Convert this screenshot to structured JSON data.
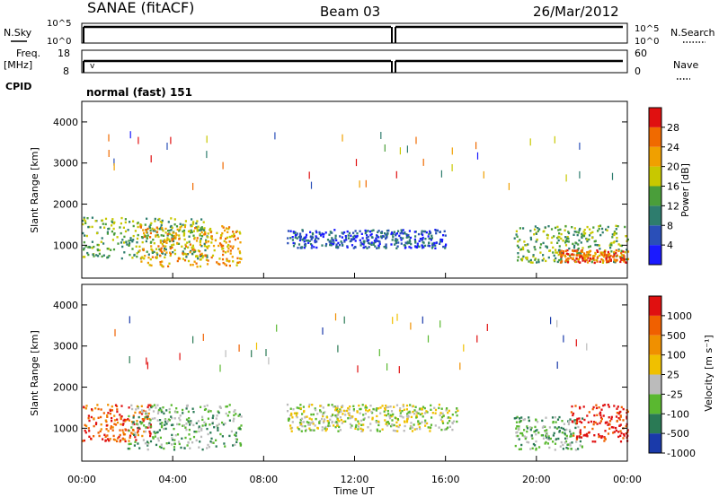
{
  "header": {
    "station": "SANAE (fitACF)",
    "beam": "Beam 03",
    "date": "26/Mar/2012"
  },
  "top_panels": {
    "nsky_label": "N.Sky",
    "nsky_ticks": [
      "10^5",
      "10^0"
    ],
    "nsearch_label": "N.Search",
    "nsearch_ticks": [
      "10^5",
      "10^0"
    ],
    "freq_label": "Freq.",
    "freq_unit": "[MHz]",
    "freq_ticks": [
      "18",
      "8"
    ],
    "nave_label": "Nave",
    "nave_ticks": [
      "60",
      "0"
    ],
    "cpid_label": "CPID",
    "cpid_value": "normal (fast) 151"
  },
  "colorbars": {
    "power": {
      "label": "Power [dB]",
      "ticks": [
        "28",
        "24",
        "20",
        "16",
        "12",
        "8",
        "4"
      ],
      "colors": [
        "#1a1aff",
        "#2a4fb8",
        "#2e7d6e",
        "#4a9e3a",
        "#c8c800",
        "#f0a000",
        "#f06a00",
        "#e01010"
      ]
    },
    "velocity": {
      "label": "Velocity [m s⁻¹]",
      "ticks": [
        "1000",
        "500",
        "100",
        "25",
        "-25",
        "-100",
        "-500",
        "-1000"
      ],
      "colors": [
        "#1a3aaa",
        "#2a7a55",
        "#5ab830",
        "#bbbbbb",
        "#f0c000",
        "#f09000",
        "#f06000",
        "#e01010"
      ]
    }
  },
  "chart_data": [
    {
      "type": "heatmap",
      "name": "power",
      "ylabel": "Slant Range [km]",
      "ylim": [
        200,
        4500
      ],
      "yticks": [
        "4000",
        "3000",
        "2000",
        "1000"
      ],
      "xlim": [
        0,
        24
      ],
      "regions": [
        {
          "t0": 0.0,
          "t1": 5.5,
          "r0": 700,
          "r1": 1700,
          "level": 3
        },
        {
          "t0": 2.5,
          "t1": 7.0,
          "r0": 500,
          "r1": 1500,
          "level": 5
        },
        {
          "t0": 9.0,
          "t1": 16.0,
          "r0": 950,
          "r1": 1400,
          "level": 1
        },
        {
          "t0": 19.0,
          "t1": 24.0,
          "r0": 600,
          "r1": 1500,
          "level": 3
        },
        {
          "t0": 21.0,
          "t1": 24.0,
          "r0": 600,
          "r1": 900,
          "level": 6
        }
      ]
    },
    {
      "type": "heatmap",
      "name": "velocity",
      "ylabel": "Slant Range [km]",
      "xlabel": "Time UT",
      "ylim": [
        200,
        4500
      ],
      "yticks": [
        "4000",
        "3000",
        "2000",
        "1000"
      ],
      "xlim": [
        0,
        24
      ],
      "xticks": [
        "00:00",
        "04:00",
        "08:00",
        "12:00",
        "16:00",
        "20:00",
        "00:00"
      ],
      "regions": [
        {
          "t0": 0.0,
          "t1": 3.0,
          "r0": 700,
          "r1": 1600,
          "level": 6
        },
        {
          "t0": 2.0,
          "t1": 7.0,
          "r0": 500,
          "r1": 1600,
          "level": 2
        },
        {
          "t0": 9.0,
          "t1": 16.5,
          "r0": 950,
          "r1": 1600,
          "level": 3
        },
        {
          "t0": 19.0,
          "t1": 22.0,
          "r0": 500,
          "r1": 1300,
          "level": 2
        },
        {
          "t0": 21.5,
          "t1": 24.0,
          "r0": 700,
          "r1": 1600,
          "level": 7
        }
      ]
    }
  ]
}
